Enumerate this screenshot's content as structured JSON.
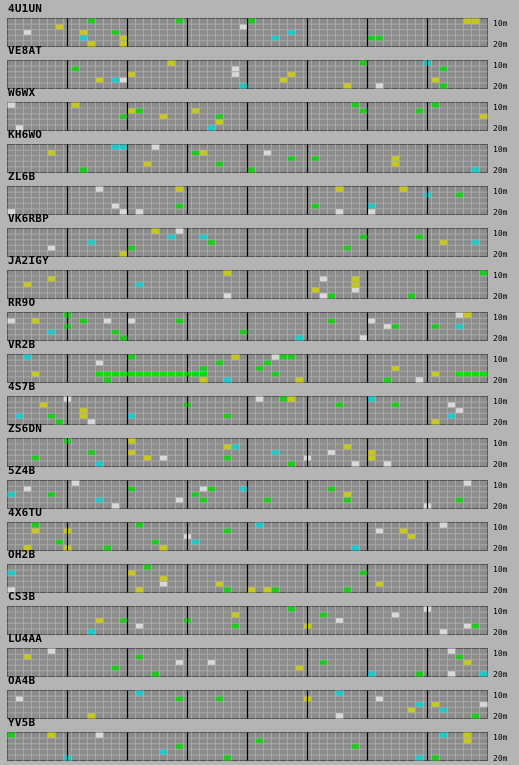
{
  "stations": [
    {
      "callsign": "4U1UN"
    },
    {
      "callsign": "VE8AT"
    },
    {
      "callsign": "W6WX"
    },
    {
      "callsign": "KH6WO"
    },
    {
      "callsign": "ZL6B"
    },
    {
      "callsign": "VK6RBP"
    },
    {
      "callsign": "JA2IGY"
    },
    {
      "callsign": "RR9O"
    },
    {
      "callsign": "VR2B"
    },
    {
      "callsign": "4S7B"
    },
    {
      "callsign": "ZS6DN"
    },
    {
      "callsign": "5Z4B"
    },
    {
      "callsign": "4X6TU"
    },
    {
      "callsign": "OH2B"
    },
    {
      "callsign": "CS3B"
    },
    {
      "callsign": "LU4AA"
    },
    {
      "callsign": "OA4B"
    },
    {
      "callsign": "YV5B"
    }
  ],
  "band_labels": {
    "top": "10m",
    "bottom": "20m"
  },
  "colors": {
    "background": "#b4b4b4",
    "grid_fill": "#8c8c8c",
    "grid_line": "#a8a8a8",
    "divider": "#000000",
    "spot_green": "#22c722",
    "spot_bright_green": "#00e000",
    "spot_cyan": "#22c7c7",
    "spot_yellow": "#c7c722",
    "spot_white": "#d8d8d8"
  }
}
